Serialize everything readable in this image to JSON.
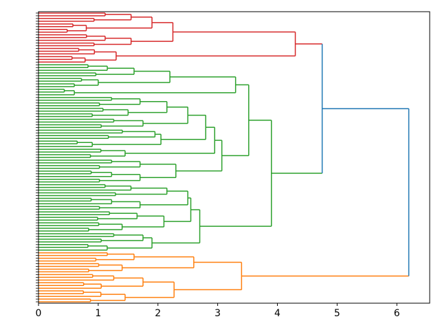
{
  "chart_data": {
    "type": "dendrogram",
    "orientation": "left",
    "xlim": [
      0,
      6.55
    ],
    "x_ticks": [
      "0",
      "1",
      "2",
      "3",
      "4",
      "5",
      "6"
    ],
    "xlabel": "",
    "ylabel": "",
    "colors": {
      "above_threshold": "#1f77b4",
      "red": "#d62728",
      "green": "#2ca02c",
      "orange": "#ff7f0e"
    },
    "tree": {
      "h": 6.2,
      "color": "above_threshold",
      "c": [
        {
          "h": 4.75,
          "color": "above_threshold",
          "c": [
            {
              "h": 4.3,
              "color": "red",
              "c": [
                {
                  "h": 2.25,
                  "c": [
                    {
                      "h": 1.9,
                      "c": [
                        {
                          "g": 1.55,
                          "n": 4
                        },
                        {
                          "g": 0.8,
                          "n": 4
                        }
                      ]
                    },
                    {
                      "g": 1.55,
                      "n": 5
                    }
                  ]
                },
                {
                  "g": 1.3,
                  "n": 6
                }
              ]
            },
            {
              "h": 3.9,
              "color": "green",
              "c": [
                {
                  "h": 3.52,
                  "c": [
                    {
                      "h": 3.3,
                      "c": [
                        {
                          "h": 2.2,
                          "c": [
                            {
                              "g": 1.6,
                              "n": 5
                            },
                            {
                              "g": 1.0,
                              "n": 4
                            }
                          ]
                        },
                        {
                          "g": 0.6,
                          "n": 3
                        }
                      ]
                    },
                    {
                      "h": 3.07,
                      "c": [
                        {
                          "h": 2.95,
                          "c": [
                            {
                              "h": 2.8,
                              "c": [
                                {
                                  "h": 2.5,
                                  "c": [
                                    {
                                      "h": 2.15,
                                      "c": [
                                        {
                                          "g": 1.7,
                                          "n": 4
                                        },
                                        {
                                          "g": 1.5,
                                          "n": 4
                                        }
                                      ]
                                    },
                                    {
                                      "g": 1.75,
                                      "n": 4
                                    }
                                  ]
                                },
                                {
                                  "h": 2.05,
                                  "c": [
                                    {
                                      "g": 1.95,
                                      "n": 4
                                    },
                                    {
                                      "g": 0.9,
                                      "n": 3
                                    }
                                  ]
                                }
                              ]
                            },
                            {
                              "g": 1.45,
                              "n": 4
                            }
                          ]
                        },
                        {
                          "h": 2.3,
                          "c": [
                            {
                              "g": 1.7,
                              "n": 4
                            },
                            {
                              "g": 1.7,
                              "n": 5
                            }
                          ]
                        }
                      ]
                    }
                  ]
                },
                {
                  "h": 2.7,
                  "c": [
                    {
                      "h": 2.55,
                      "c": [
                        {
                          "h": 2.5,
                          "c": [
                            {
                              "g": 2.15,
                              "n": 5
                            },
                            {
                              "g": 1.7,
                              "n": 5
                            }
                          ]
                        },
                        {
                          "h": 2.1,
                          "c": [
                            {
                              "g": 1.65,
                              "n": 4
                            },
                            {
                              "g": 1.4,
                              "n": 4
                            }
                          ]
                        }
                      ]
                    },
                    {
                      "h": 1.9,
                      "c": [
                        {
                          "g": 1.75,
                          "n": 4
                        },
                        {
                          "g": 1.15,
                          "n": 3
                        }
                      ]
                    }
                  ]
                }
              ]
            }
          ]
        },
        {
          "h": 3.4,
          "color": "orange",
          "c": [
            {
              "h": 2.6,
              "c": [
                {
                  "g": 1.6,
                  "n": 4
                },
                {
                  "g": 1.4,
                  "n": 4
                }
              ]
            },
            {
              "h": 2.27,
              "c": [
                {
                  "g": 1.75,
                  "n": 6
                },
                {
                  "g": 1.45,
                  "n": 5
                }
              ]
            }
          ]
        }
      ]
    }
  }
}
